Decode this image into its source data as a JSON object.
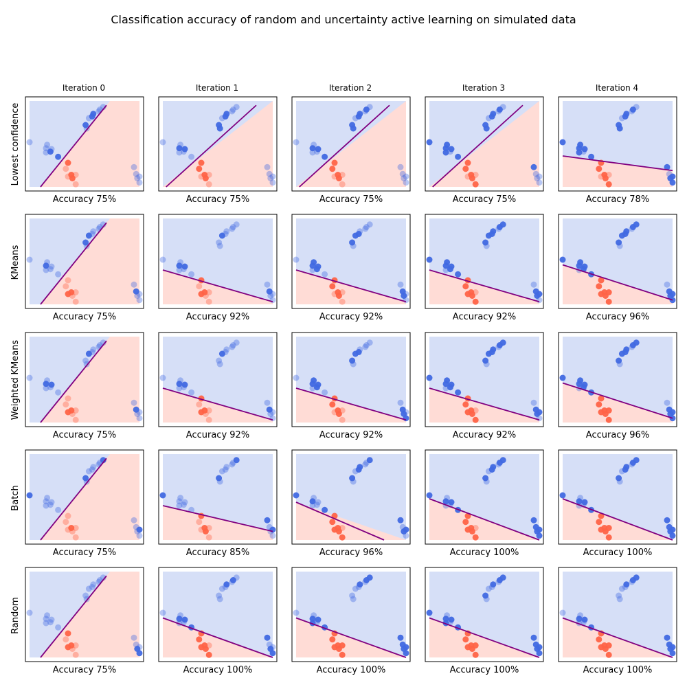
{
  "figure": {
    "title": "Classification accuracy of random and uncertainty active learning on simulated data",
    "column_labels": [
      "Iteration 0",
      "Iteration 1",
      "Iteration 2",
      "Iteration 3",
      "Iteration 4"
    ],
    "row_labels": [
      "Lowest confidence",
      "KMeans",
      "Weighted KMeans",
      "Batch",
      "Random"
    ]
  },
  "colors": {
    "class_a": "#4169e1",
    "class_b": "#ff6347",
    "region_a": "#d6dff7",
    "region_b": "#ffdcd6",
    "boundary": "#800080"
  },
  "chart_data": {
    "type": "scatter",
    "xlim": [
      0,
      1
    ],
    "ylim": [
      0,
      1
    ],
    "grid": false,
    "points": {
      "class_a": [
        [
          0.0,
          0.52
        ],
        [
          0.15,
          0.45
        ],
        [
          0.2,
          0.44
        ],
        [
          0.15,
          0.4
        ],
        [
          0.16,
          0.49
        ],
        [
          0.19,
          0.41
        ],
        [
          0.26,
          0.35
        ],
        [
          0.51,
          0.72
        ],
        [
          0.52,
          0.68
        ],
        [
          0.54,
          0.8
        ],
        [
          0.57,
          0.82
        ],
        [
          0.58,
          0.85
        ],
        [
          0.63,
          0.88
        ],
        [
          0.64,
          0.9
        ],
        [
          0.67,
          0.93
        ],
        [
          0.95,
          0.23
        ],
        [
          0.97,
          0.15
        ],
        [
          0.98,
          0.1
        ],
        [
          1.0,
          0.12
        ],
        [
          1.0,
          0.05
        ]
      ],
      "class_b": [
        [
          0.33,
          0.21
        ],
        [
          0.35,
          0.28
        ],
        [
          0.35,
          0.12
        ],
        [
          0.38,
          0.14
        ],
        [
          0.39,
          0.1
        ],
        [
          0.42,
          0.14
        ],
        [
          0.42,
          0.03
        ]
      ]
    },
    "panels": [
      {
        "row": 0,
        "col": 0,
        "accuracy": "Accuracy 75%",
        "boundary": [
          [
            0.1,
            0.0
          ],
          [
            0.7,
            0.95
          ]
        ],
        "labeled_a": [
          5,
          6,
          7,
          10,
          11
        ],
        "labeled_b": [
          1,
          3,
          4
        ]
      },
      {
        "row": 0,
        "col": 1,
        "accuracy": "Accuracy 75%",
        "boundary": [
          [
            0.03,
            0.0
          ],
          [
            0.85,
            0.95
          ]
        ],
        "labeled_a": [
          1,
          2,
          7,
          8,
          10,
          11
        ],
        "labeled_b": [
          0,
          1,
          3,
          4
        ]
      },
      {
        "row": 0,
        "col": 2,
        "accuracy": "Accuracy 75%",
        "boundary": [
          [
            0.03,
            0.0
          ],
          [
            0.85,
            0.95
          ]
        ],
        "labeled_a": [
          1,
          2,
          6,
          7,
          8,
          10,
          11,
          13
        ],
        "labeled_b": [
          0,
          1,
          3,
          4
        ]
      },
      {
        "row": 0,
        "col": 3,
        "accuracy": "Accuracy 75%",
        "boundary": [
          [
            0.03,
            0.0
          ],
          [
            0.85,
            0.95
          ]
        ],
        "labeled_a": [
          0,
          1,
          2,
          3,
          4,
          6,
          7,
          8,
          10,
          11,
          13,
          15
        ],
        "labeled_b": [
          0,
          1,
          3,
          4,
          6
        ]
      },
      {
        "row": 0,
        "col": 4,
        "accuracy": "Accuracy 78%",
        "boundary": [
          [
            0.0,
            0.36
          ],
          [
            1.0,
            0.19
          ]
        ],
        "labeled_a": [
          0,
          1,
          2,
          3,
          4,
          6,
          7,
          8,
          10,
          11,
          13,
          15,
          17,
          18,
          19
        ],
        "labeled_b": [
          0,
          1,
          3,
          4,
          6
        ]
      },
      {
        "row": 1,
        "col": 0,
        "accuracy": "Accuracy 75%",
        "boundary": [
          [
            0.1,
            0.0
          ],
          [
            0.7,
            0.95
          ]
        ],
        "labeled_a": [
          1,
          7,
          9,
          16
        ],
        "labeled_b": [
          2,
          3
        ]
      },
      {
        "row": 1,
        "col": 1,
        "accuracy": "Accuracy 92%",
        "boundary": [
          [
            0.0,
            0.4
          ],
          [
            1.0,
            0.03
          ]
        ],
        "labeled_a": [
          1,
          2,
          9,
          16
        ],
        "labeled_b": [
          1,
          2,
          3
        ]
      },
      {
        "row": 1,
        "col": 2,
        "accuracy": "Accuracy 92%",
        "boundary": [
          [
            0.0,
            0.4
          ],
          [
            1.0,
            0.03
          ]
        ],
        "labeled_a": [
          1,
          2,
          4,
          5,
          7,
          9,
          10,
          16,
          17
        ],
        "labeled_b": [
          0,
          1,
          3,
          4
        ]
      },
      {
        "row": 1,
        "col": 3,
        "accuracy": "Accuracy 92%",
        "boundary": [
          [
            0.0,
            0.4
          ],
          [
            1.0,
            0.03
          ]
        ],
        "labeled_a": [
          0,
          1,
          2,
          4,
          5,
          6,
          7,
          9,
          10,
          11,
          13,
          14,
          16,
          17,
          18
        ],
        "labeled_b": [
          0,
          1,
          2,
          3,
          4,
          6
        ]
      },
      {
        "row": 1,
        "col": 4,
        "accuracy": "Accuracy 96%",
        "boundary": [
          [
            0.0,
            0.46
          ],
          [
            1.0,
            0.05
          ]
        ],
        "labeled_a": [
          0,
          1,
          2,
          4,
          5,
          6,
          7,
          9,
          10,
          11,
          13,
          14,
          16,
          17,
          18,
          19
        ],
        "labeled_b": [
          0,
          1,
          2,
          3,
          4,
          5,
          6
        ]
      },
      {
        "row": 2,
        "col": 0,
        "accuracy": "Accuracy 75%",
        "boundary": [
          [
            0.1,
            0.0
          ],
          [
            0.7,
            0.95
          ]
        ],
        "labeled_a": [
          1,
          2,
          9,
          16
        ],
        "labeled_b": [
          2,
          3
        ]
      },
      {
        "row": 2,
        "col": 1,
        "accuracy": "Accuracy 92%",
        "boundary": [
          [
            0.0,
            0.4
          ],
          [
            1.0,
            0.03
          ]
        ],
        "labeled_a": [
          1,
          2,
          9,
          16
        ],
        "labeled_b": [
          1,
          2,
          3
        ]
      },
      {
        "row": 2,
        "col": 2,
        "accuracy": "Accuracy 92%",
        "boundary": [
          [
            0.0,
            0.4
          ],
          [
            1.0,
            0.03
          ]
        ],
        "labeled_a": [
          1,
          2,
          4,
          5,
          7,
          9,
          10,
          16,
          17,
          19
        ],
        "labeled_b": [
          0,
          1,
          3,
          4
        ]
      },
      {
        "row": 2,
        "col": 3,
        "accuracy": "Accuracy 92%",
        "boundary": [
          [
            0.0,
            0.4
          ],
          [
            1.0,
            0.03
          ]
        ],
        "labeled_a": [
          0,
          1,
          2,
          4,
          5,
          6,
          7,
          9,
          10,
          11,
          13,
          14,
          16,
          17,
          18
        ],
        "labeled_b": [
          0,
          1,
          2,
          3,
          4,
          6
        ]
      },
      {
        "row": 2,
        "col": 4,
        "accuracy": "Accuracy 96%",
        "boundary": [
          [
            0.0,
            0.46
          ],
          [
            1.0,
            0.05
          ]
        ],
        "labeled_a": [
          0,
          1,
          2,
          4,
          5,
          6,
          7,
          9,
          10,
          11,
          13,
          14,
          16,
          17,
          18,
          19
        ],
        "labeled_b": [
          0,
          1,
          2,
          3,
          4,
          5,
          6
        ]
      },
      {
        "row": 3,
        "col": 0,
        "accuracy": "Accuracy 75%",
        "boundary": [
          [
            0.1,
            0.0
          ],
          [
            0.7,
            0.95
          ]
        ],
        "labeled_a": [
          0,
          7,
          14,
          18
        ],
        "labeled_b": [
          3
        ]
      },
      {
        "row": 3,
        "col": 1,
        "accuracy": "Accuracy 85%",
        "boundary": [
          [
            0.0,
            0.4
          ],
          [
            1.0,
            0.1
          ]
        ],
        "labeled_a": [
          0,
          7,
          14,
          15,
          18
        ],
        "labeled_b": [
          1,
          3,
          4
        ]
      },
      {
        "row": 3,
        "col": 2,
        "accuracy": "Accuracy 96%",
        "boundary": [
          [
            0.0,
            0.44
          ],
          [
            0.8,
            0.0
          ]
        ],
        "labeled_a": [
          0,
          1,
          6,
          7,
          10,
          11,
          14,
          15,
          17,
          18
        ],
        "labeled_b": [
          0,
          1,
          2,
          3,
          4,
          6
        ]
      },
      {
        "row": 3,
        "col": 3,
        "accuracy": "Accuracy 100%",
        "boundary": [
          [
            0.0,
            0.48
          ],
          [
            1.0,
            0.0
          ]
        ],
        "labeled_a": [
          0,
          1,
          2,
          6,
          7,
          10,
          11,
          13,
          14,
          15,
          16,
          17,
          18,
          19
        ],
        "labeled_b": [
          0,
          1,
          2,
          3,
          4,
          6
        ]
      },
      {
        "row": 3,
        "col": 4,
        "accuracy": "Accuracy 100%",
        "boundary": [
          [
            0.0,
            0.48
          ],
          [
            1.0,
            0.0
          ]
        ],
        "labeled_a": [
          0,
          1,
          2,
          6,
          7,
          10,
          11,
          13,
          14,
          15,
          16,
          17,
          18,
          19
        ],
        "labeled_b": [
          0,
          1,
          2,
          3,
          4,
          5,
          6
        ]
      },
      {
        "row": 4,
        "col": 0,
        "accuracy": "Accuracy 75%",
        "boundary": [
          [
            0.1,
            0.0
          ],
          [
            0.7,
            0.95
          ]
        ],
        "labeled_a": [
          17,
          19
        ],
        "labeled_b": [
          1,
          2,
          3
        ]
      },
      {
        "row": 4,
        "col": 1,
        "accuracy": "Accuracy 100%",
        "boundary": [
          [
            0.0,
            0.46
          ],
          [
            1.0,
            0.0
          ]
        ],
        "labeled_a": [
          1,
          2,
          6,
          11,
          13,
          15,
          17,
          19
        ],
        "labeled_b": [
          0,
          1,
          2,
          3,
          4,
          6
        ]
      },
      {
        "row": 4,
        "col": 2,
        "accuracy": "Accuracy 100%",
        "boundary": [
          [
            0.0,
            0.46
          ],
          [
            1.0,
            0.0
          ]
        ],
        "labeled_a": [
          1,
          2,
          3,
          6,
          11,
          13,
          14,
          15,
          16,
          17,
          18,
          19
        ],
        "labeled_b": [
          0,
          1,
          2,
          3,
          4,
          5,
          6
        ]
      },
      {
        "row": 4,
        "col": 3,
        "accuracy": "Accuracy 100%",
        "boundary": [
          [
            0.0,
            0.46
          ],
          [
            1.0,
            0.0
          ]
        ],
        "labeled_a": [
          0,
          1,
          2,
          3,
          6,
          7,
          11,
          13,
          14,
          15,
          16,
          17,
          18,
          19
        ],
        "labeled_b": [
          0,
          1,
          2,
          3,
          4,
          5,
          6
        ]
      },
      {
        "row": 4,
        "col": 4,
        "accuracy": "Accuracy 100%",
        "boundary": [
          [
            0.0,
            0.46
          ],
          [
            1.0,
            0.0
          ]
        ],
        "labeled_a": [
          1,
          2,
          6,
          11,
          13,
          14,
          15,
          16,
          17,
          18,
          19
        ],
        "labeled_b": [
          0,
          1,
          2,
          3,
          4,
          5,
          6
        ]
      }
    ]
  }
}
